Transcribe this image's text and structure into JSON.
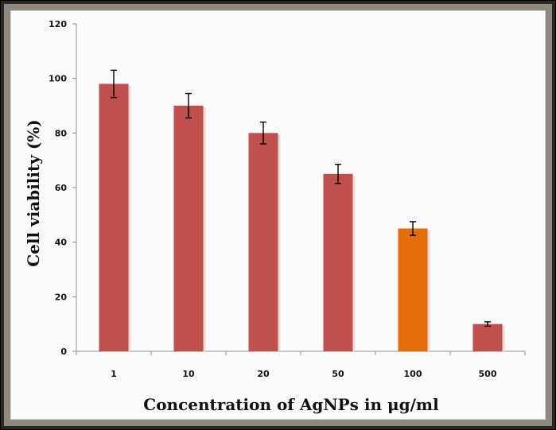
{
  "chart_data": {
    "type": "bar",
    "title": "",
    "xlabel": "Concentration of AgNPs in μg/ml",
    "ylabel": "Cell viability (%)",
    "categories": [
      "1",
      "10",
      "20",
      "50",
      "100",
      "500"
    ],
    "values": [
      98,
      90,
      80,
      65,
      45,
      10
    ],
    "error_bars": [
      5,
      4.5,
      4,
      3.5,
      2.5,
      0.8
    ],
    "colors": [
      "#c0504d",
      "#c0504d",
      "#c0504d",
      "#c0504d",
      "#e46c0a",
      "#c0504d"
    ],
    "ylim": [
      0,
      120
    ],
    "yticks": [
      0,
      20,
      40,
      60,
      80,
      100,
      120
    ],
    "grid": false,
    "legend": "none"
  }
}
